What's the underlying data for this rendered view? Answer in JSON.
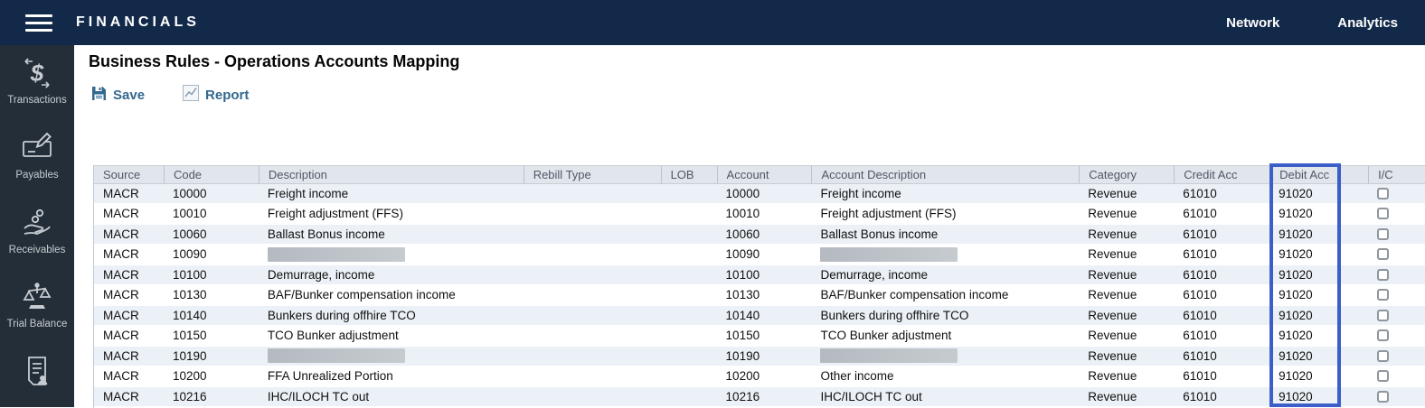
{
  "navbar": {
    "title": "FINANCIALS",
    "links": [
      {
        "label": "Network"
      },
      {
        "label": "Analytics"
      }
    ]
  },
  "sidebar": {
    "items": [
      {
        "label": "Transactions",
        "icon": "dollar-arrows-icon"
      },
      {
        "label": "Payables",
        "icon": "check-pen-icon"
      },
      {
        "label": "Receivables",
        "icon": "hand-coins-icon"
      },
      {
        "label": "Trial Balance",
        "icon": "scales-icon"
      },
      {
        "label": "",
        "icon": "document-person-icon"
      }
    ]
  },
  "page": {
    "title": "Business Rules - Operations Accounts Mapping"
  },
  "toolbar": {
    "save_label": "Save",
    "report_label": "Report"
  },
  "table": {
    "columns": [
      "Source",
      "Code",
      "Description",
      "Rebill Type",
      "LOB",
      "Account",
      "Account Description",
      "Category",
      "Credit Acc",
      "Debit Acc",
      "I/C"
    ],
    "highlighted_column": "Debit Acc",
    "rows": [
      {
        "source": "MACR",
        "code": "10000",
        "description": "Freight income",
        "rebill_type": "",
        "lob": "",
        "account": "10000",
        "account_description": "Freight income",
        "category": "Revenue",
        "credit_acc": "61010",
        "debit_acc": "91020",
        "ic_checked": false
      },
      {
        "source": "MACR",
        "code": "10010",
        "description": "Freight adjustment (FFS)",
        "rebill_type": "",
        "lob": "",
        "account": "10010",
        "account_description": "Freight adjustment (FFS)",
        "category": "Revenue",
        "credit_acc": "61010",
        "debit_acc": "91020",
        "ic_checked": false
      },
      {
        "source": "MACR",
        "code": "10060",
        "description": "Ballast Bonus income",
        "rebill_type": "",
        "lob": "",
        "account": "10060",
        "account_description": "Ballast Bonus income",
        "category": "Revenue",
        "credit_acc": "61010",
        "debit_acc": "91020",
        "ic_checked": false
      },
      {
        "source": "MACR",
        "code": "10090",
        "description": "",
        "description_redacted": true,
        "rebill_type": "",
        "lob": "",
        "account": "10090",
        "account_description": "",
        "account_description_redacted": true,
        "category": "Revenue",
        "credit_acc": "61010",
        "debit_acc": "91020",
        "ic_checked": false
      },
      {
        "source": "MACR",
        "code": "10100",
        "description": "Demurrage, income",
        "rebill_type": "",
        "lob": "",
        "account": "10100",
        "account_description": "Demurrage, income",
        "category": "Revenue",
        "credit_acc": "61010",
        "debit_acc": "91020",
        "ic_checked": false
      },
      {
        "source": "MACR",
        "code": "10130",
        "description": "BAF/Bunker compensation income",
        "rebill_type": "",
        "lob": "",
        "account": "10130",
        "account_description": "BAF/Bunker compensation income",
        "category": "Revenue",
        "credit_acc": "61010",
        "debit_acc": "91020",
        "ic_checked": false
      },
      {
        "source": "MACR",
        "code": "10140",
        "description": "Bunkers during offhire TCO",
        "rebill_type": "",
        "lob": "",
        "account": "10140",
        "account_description": "Bunkers during offhire TCO",
        "category": "Revenue",
        "credit_acc": "61010",
        "debit_acc": "91020",
        "ic_checked": false
      },
      {
        "source": "MACR",
        "code": "10150",
        "description": "TCO Bunker adjustment",
        "rebill_type": "",
        "lob": "",
        "account": "10150",
        "account_description": "TCO Bunker adjustment",
        "category": "Revenue",
        "credit_acc": "61010",
        "debit_acc": "91020",
        "ic_checked": false
      },
      {
        "source": "MACR",
        "code": "10190",
        "description": "",
        "description_redacted": true,
        "rebill_type": "",
        "lob": "",
        "account": "10190",
        "account_description": "",
        "account_description_redacted": true,
        "category": "Revenue",
        "credit_acc": "61010",
        "debit_acc": "91020",
        "ic_checked": false
      },
      {
        "source": "MACR",
        "code": "10200",
        "description": "FFA Unrealized Portion",
        "rebill_type": "",
        "lob": "",
        "account": "10200",
        "account_description": "Other income",
        "category": "Revenue",
        "credit_acc": "61010",
        "debit_acc": "91020",
        "ic_checked": false
      },
      {
        "source": "MACR",
        "code": "10216",
        "description": "IHC/ILOCH TC out",
        "rebill_type": "",
        "lob": "",
        "account": "10216",
        "account_description": "IHC/ILOCH TC out",
        "category": "Revenue",
        "credit_acc": "61010",
        "debit_acc": "91020",
        "ic_checked": false
      }
    ]
  },
  "colors": {
    "navbar_bg": "#12294a",
    "sidebar_bg": "#242e38",
    "toolbar_link": "#33688f",
    "grid_header_bg": "#e1e6ec",
    "row_alt_bg": "#ecf1f7",
    "highlight_border": "#3c5ec9",
    "redaction_gray": "#b9bfc5"
  }
}
